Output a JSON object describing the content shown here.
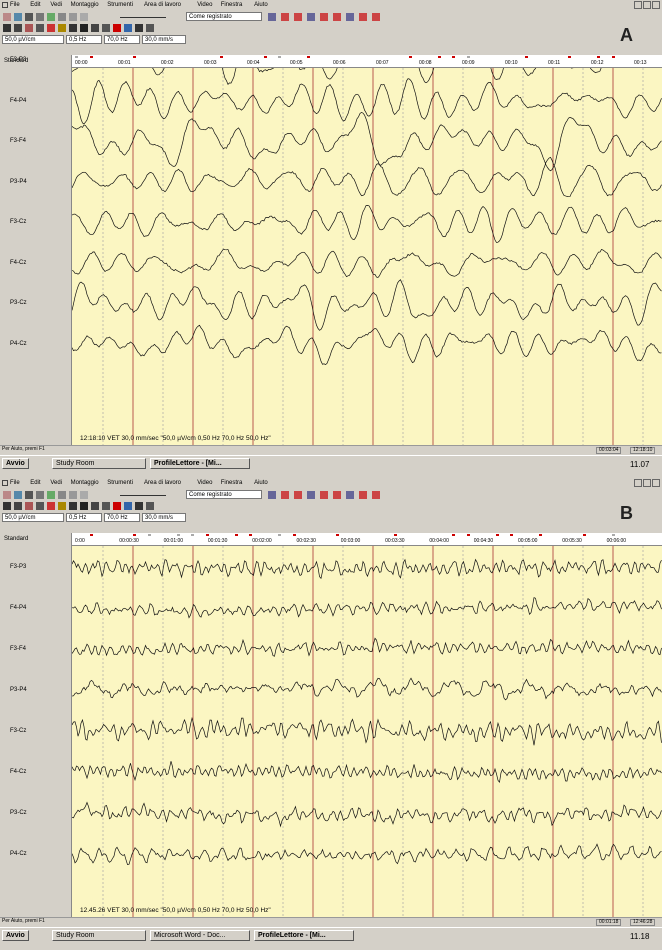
{
  "panels": [
    {
      "label": "A",
      "menu": [
        "File",
        "Edit",
        "Vedi",
        "Montaggio",
        "Strumenti",
        "Area di lavoro",
        "Video",
        "Finestra",
        "Aiuto"
      ],
      "montage_select": "Come registrato",
      "settings": [
        "50,0 µV/cm",
        "0,5 Hz",
        "70,0 Hz",
        "30,0 mm/s"
      ],
      "montage": "Standard",
      "time_ticks": [
        "00:00",
        "00:01",
        "00:02",
        "00:03",
        "00:04",
        "00:05",
        "00:06",
        "00:07",
        "00:08",
        "00:09",
        "00:10",
        "00:11",
        "00:12",
        "00:13"
      ],
      "channels": [
        "F3-P3",
        "F4-P4",
        "F3-F4",
        "P3-P4",
        "F3-Cz",
        "F4-Cz",
        "P3-Cz",
        "P4-Cz"
      ],
      "footer": "12:18:10 VET  30,0 mm/sec  \"50,0 µV/cm 0,50 Hz 70,0 Hz 50,0 Hz\"",
      "status": {
        "help": "Per Aiuto, premi F1",
        "elapsed": "00:03:04",
        "clock": "12:18:10"
      },
      "taskbar": {
        "start": "Avvio",
        "buttons": [
          "Study Room",
          "ProfileLettore - [Mi..."
        ],
        "time": "11.07"
      }
    },
    {
      "label": "B",
      "menu": [
        "File",
        "Edit",
        "Vedi",
        "Montaggio",
        "Strumenti",
        "Area di lavoro",
        "Video",
        "Finestra",
        "Aiuto"
      ],
      "montage_select": "Come registrato",
      "settings": [
        "50,0 µV/cm",
        "0,5 Hz",
        "70,0 Hz",
        "30,0 mm/s"
      ],
      "montage": "Standard",
      "time_ticks": [
        "0:00",
        "00:00:30",
        "00:01:00",
        "00:01:30",
        "00:02:00",
        "00:02:30",
        "00:03:00",
        "00:03:30",
        "00:04:00",
        "00:04:30",
        "00:05:00",
        "00:05:30",
        "00:06:00"
      ],
      "channels": [
        "F3-P3",
        "F4-P4",
        "F3-F4",
        "P3-P4",
        "F3-Cz",
        "F4-Cz",
        "P3-Cz",
        "P4-Cz"
      ],
      "footer": "12.45.26 VET  30,0 mm/sec  \"50,0 µV/cm 0,50 Hz 70,0 Hz 50,0 Hz\"",
      "status": {
        "help": "Per Aiuto, premi F1",
        "elapsed": "00:01:18",
        "clock": "12:46:28"
      },
      "taskbar": {
        "start": "Avvio",
        "buttons": [
          "Study Room",
          "Microsoft Word - Doc...",
          "ProfileLettore - [Mi..."
        ],
        "time": "11.18"
      }
    }
  ]
}
